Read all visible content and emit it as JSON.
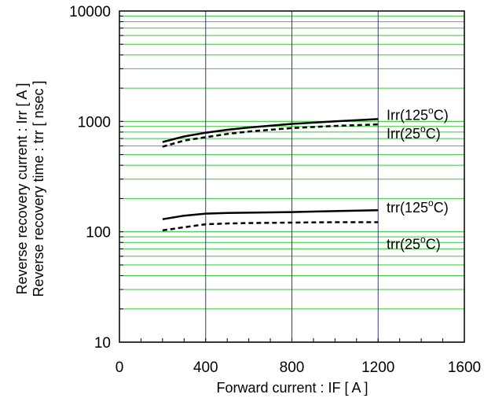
{
  "chart_data": {
    "type": "line",
    "title": "",
    "xlabel": "Forward current : IF [ A ]",
    "ylabel_lines": [
      "Reverse recovery current : Irr [ A ]",
      "Reverse recovery time : trr [ nsec ]"
    ],
    "xlim": [
      0,
      1600
    ],
    "ylim": [
      10,
      10000
    ],
    "yscale": "log",
    "x_ticks": [
      "0",
      "400",
      "800",
      "1200",
      "1600"
    ],
    "y_ticks": [
      "10",
      "100",
      "1000",
      "10000"
    ],
    "grid": true,
    "colors": {
      "vertical_grid": "#3333aa",
      "horizontal_grid": "#33cc33",
      "series": "#000000"
    },
    "series": [
      {
        "name": "Irr(125°C)",
        "label_main": "Irr(125",
        "label_sup": "o",
        "label_end": "C)",
        "style": "solid",
        "x": [
          200,
          300,
          400,
          500,
          600,
          800,
          1000,
          1200
        ],
        "y": [
          650,
          730,
          790,
          840,
          880,
          950,
          1000,
          1050
        ]
      },
      {
        "name": "Irr(25°C)",
        "label_main": "Irr(25",
        "label_sup": "o",
        "label_end": "C)",
        "style": "dashed",
        "x": [
          200,
          300,
          400,
          500,
          600,
          800,
          1000,
          1200
        ],
        "y": [
          590,
          670,
          720,
          770,
          810,
          870,
          910,
          940
        ]
      },
      {
        "name": "trr(125°C)",
        "label_main": "trr(125",
        "label_sup": "o",
        "label_end": "C)",
        "style": "solid",
        "x": [
          200,
          300,
          400,
          500,
          600,
          800,
          1000,
          1200
        ],
        "y": [
          130,
          140,
          146,
          148,
          149,
          151,
          154,
          157
        ]
      },
      {
        "name": "trr(25°C)",
        "label_main": "trr(25",
        "label_sup": "o",
        "label_end": "C)",
        "style": "dashed",
        "x": [
          200,
          300,
          400,
          500,
          600,
          800,
          1000,
          1200
        ],
        "y": [
          103,
          110,
          117,
          119,
          120,
          121,
          122,
          122
        ]
      }
    ]
  }
}
